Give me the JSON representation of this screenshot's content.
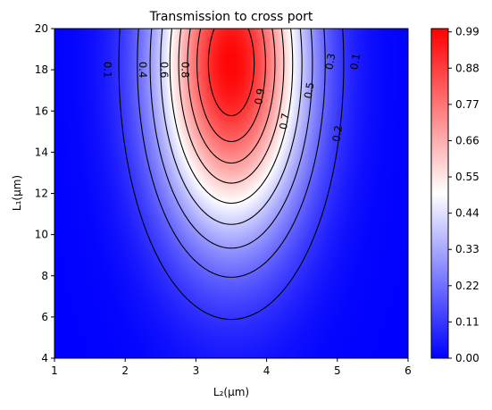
{
  "chart_data": {
    "type": "heatmap",
    "title": "Transmission to cross port",
    "xlabel": "L₂(μm)",
    "ylabel": "L₁(μm)",
    "xlim": [
      1,
      6
    ],
    "ylim": [
      4,
      20
    ],
    "xticks": [
      "1",
      "2",
      "3",
      "4",
      "5",
      "6"
    ],
    "yticks": [
      "4",
      "6",
      "8",
      "10",
      "12",
      "14",
      "16",
      "18",
      "20"
    ],
    "colormap": "bwr",
    "colormap_stops": [
      "#0000ff",
      "#ffffff",
      "#ff0000"
    ],
    "clim": [
      0,
      1
    ],
    "colorbar_ticks": [
      "0.00",
      "0.11",
      "0.22",
      "0.33",
      "0.44",
      "0.55",
      "0.66",
      "0.77",
      "0.88",
      "0.99"
    ],
    "grid": false,
    "contour_style": "dashed",
    "contour_color": "#000000",
    "contour_levels": [
      0.1,
      0.2,
      0.3,
      0.4,
      0.5,
      0.6,
      0.7,
      0.8,
      0.9
    ],
    "contour_labels": [
      {
        "text": "0.1",
        "x": 1.75,
        "y": 18.0
      },
      {
        "text": "0.4",
        "x": 2.25,
        "y": 18.0
      },
      {
        "text": "0.6",
        "x": 2.55,
        "y": 18.0
      },
      {
        "text": "0.8",
        "x": 2.85,
        "y": 18.0
      },
      {
        "text": "0.9",
        "x": 3.9,
        "y": 16.7
      },
      {
        "text": "0.7",
        "x": 4.25,
        "y": 15.5
      },
      {
        "text": "0.5",
        "x": 4.6,
        "y": 17.0
      },
      {
        "text": "0.3",
        "x": 4.9,
        "y": 18.4
      },
      {
        "text": "0.1",
        "x": 5.25,
        "y": 18.4
      },
      {
        "text": "0.2",
        "x": 5.0,
        "y": 14.9
      }
    ],
    "peak": {
      "x": 3.5,
      "y": 18.3,
      "value": 0.99
    }
  }
}
